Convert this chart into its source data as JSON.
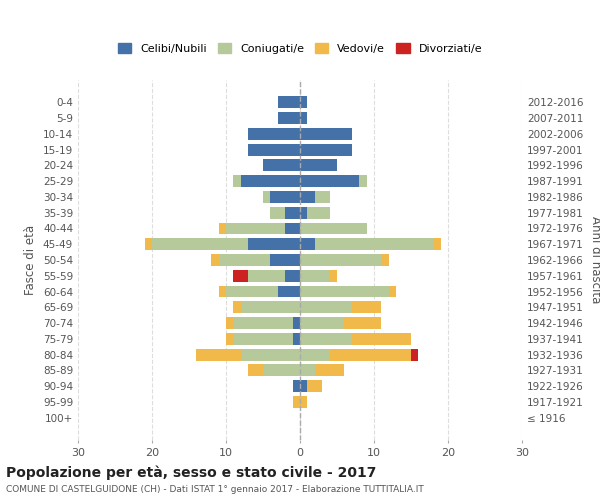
{
  "age_groups": [
    "100+",
    "95-99",
    "90-94",
    "85-89",
    "80-84",
    "75-79",
    "70-74",
    "65-69",
    "60-64",
    "55-59",
    "50-54",
    "45-49",
    "40-44",
    "35-39",
    "30-34",
    "25-29",
    "20-24",
    "15-19",
    "10-14",
    "5-9",
    "0-4"
  ],
  "birth_years": [
    "≤ 1916",
    "1917-1921",
    "1922-1926",
    "1927-1931",
    "1932-1936",
    "1937-1941",
    "1942-1946",
    "1947-1951",
    "1952-1956",
    "1957-1961",
    "1962-1966",
    "1967-1971",
    "1972-1976",
    "1977-1981",
    "1982-1986",
    "1987-1991",
    "1992-1996",
    "1997-2001",
    "2002-2006",
    "2007-2011",
    "2012-2016"
  ],
  "male": {
    "celibi": [
      0,
      0,
      1,
      0,
      0,
      1,
      1,
      0,
      3,
      2,
      4,
      7,
      2,
      2,
      4,
      8,
      5,
      7,
      7,
      3,
      3
    ],
    "coniugati": [
      0,
      0,
      0,
      5,
      8,
      8,
      8,
      8,
      7,
      5,
      7,
      13,
      8,
      2,
      1,
      1,
      0,
      0,
      0,
      0,
      0
    ],
    "vedovi": [
      0,
      1,
      0,
      2,
      6,
      1,
      1,
      1,
      1,
      0,
      1,
      1,
      1,
      0,
      0,
      0,
      0,
      0,
      0,
      0,
      0
    ],
    "divorziati": [
      0,
      0,
      0,
      0,
      0,
      0,
      0,
      0,
      0,
      2,
      0,
      0,
      0,
      0,
      0,
      0,
      0,
      0,
      0,
      0,
      0
    ]
  },
  "female": {
    "nubili": [
      0,
      0,
      1,
      0,
      0,
      0,
      0,
      0,
      0,
      0,
      0,
      2,
      0,
      1,
      2,
      8,
      5,
      7,
      7,
      1,
      1
    ],
    "coniugate": [
      0,
      0,
      0,
      2,
      4,
      7,
      6,
      7,
      12,
      4,
      11,
      16,
      9,
      3,
      2,
      1,
      0,
      0,
      0,
      0,
      0
    ],
    "vedove": [
      0,
      1,
      2,
      4,
      11,
      8,
      5,
      4,
      1,
      1,
      1,
      1,
      0,
      0,
      0,
      0,
      0,
      0,
      0,
      0,
      0
    ],
    "divorziate": [
      0,
      0,
      0,
      0,
      1,
      0,
      0,
      0,
      0,
      0,
      0,
      0,
      0,
      0,
      0,
      0,
      0,
      0,
      0,
      0,
      0
    ]
  },
  "colors": {
    "celibi": "#4472a8",
    "coniugati": "#b5c99a",
    "vedovi": "#f0b94a",
    "divorziati": "#cc2222"
  },
  "xlim": 30,
  "title": "Popolazione per età, sesso e stato civile - 2017",
  "subtitle": "COMUNE DI CASTELGUIDONE (CH) - Dati ISTAT 1° gennaio 2017 - Elaborazione TUTTITALIA.IT",
  "ylabel_left": "Fasce di età",
  "ylabel_right": "Anni di nascita",
  "legend_labels": [
    "Celibi/Nubili",
    "Coniugati/e",
    "Vedovi/e",
    "Divorziati/e"
  ],
  "bg_color": "#ffffff",
  "grid_color": "#dddddd"
}
